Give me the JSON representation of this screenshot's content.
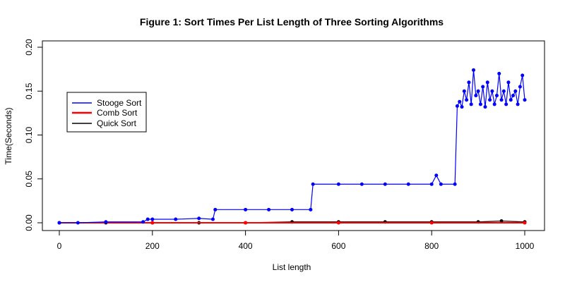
{
  "chart_data": {
    "type": "line",
    "title": "Figure 1: Sort Times Per List Length of Three Sorting Algorithms",
    "xlabel": "List length",
    "ylabel": "Time(Seconds)",
    "xlim": [
      0,
      1000
    ],
    "ylim": [
      -0.01,
      0.21
    ],
    "xticks": [
      0,
      200,
      400,
      600,
      800,
      1000
    ],
    "yticks": [
      0.0,
      0.05,
      0.1,
      0.15,
      0.2
    ],
    "ytick_labels": [
      "0.00",
      "0.05",
      "0.10",
      "0.15",
      "0.20"
    ],
    "legend_position": "left-middle",
    "series": [
      {
        "name": "Stooge Sort",
        "color": "#0000ff",
        "x": [
          0,
          40,
          100,
          180,
          190,
          200,
          250,
          300,
          330,
          335,
          400,
          450,
          500,
          540,
          545,
          600,
          650,
          700,
          750,
          800,
          810,
          820,
          850,
          855,
          860,
          865,
          870,
          875,
          880,
          885,
          890,
          895,
          900,
          905,
          910,
          915,
          920,
          925,
          930,
          935,
          940,
          945,
          950,
          955,
          960,
          965,
          970,
          975,
          980,
          985,
          990,
          995,
          1000
        ],
        "values": [
          0.0,
          0.0,
          0.001,
          0.001,
          0.004,
          0.004,
          0.004,
          0.005,
          0.004,
          0.015,
          0.015,
          0.015,
          0.015,
          0.015,
          0.044,
          0.044,
          0.044,
          0.044,
          0.044,
          0.044,
          0.054,
          0.044,
          0.044,
          0.133,
          0.138,
          0.132,
          0.15,
          0.14,
          0.16,
          0.135,
          0.174,
          0.145,
          0.15,
          0.135,
          0.155,
          0.132,
          0.16,
          0.14,
          0.15,
          0.135,
          0.145,
          0.17,
          0.14,
          0.15,
          0.135,
          0.16,
          0.14,
          0.145,
          0.15,
          0.135,
          0.155,
          0.168,
          0.14
        ]
      },
      {
        "name": "Comb Sort",
        "color": "#ff0000",
        "x": [
          0,
          200,
          400,
          600,
          800,
          1000
        ],
        "values": [
          0.0,
          0.0,
          0.0,
          0.0,
          0.0,
          0.0
        ]
      },
      {
        "name": "Quick Sort",
        "color": "#000000",
        "x": [
          0,
          100,
          200,
          300,
          400,
          500,
          600,
          700,
          800,
          900,
          950,
          1000
        ],
        "values": [
          0.0,
          0.0,
          0.0,
          0.0,
          0.0,
          0.001,
          0.001,
          0.001,
          0.001,
          0.001,
          0.002,
          0.001
        ]
      }
    ]
  }
}
